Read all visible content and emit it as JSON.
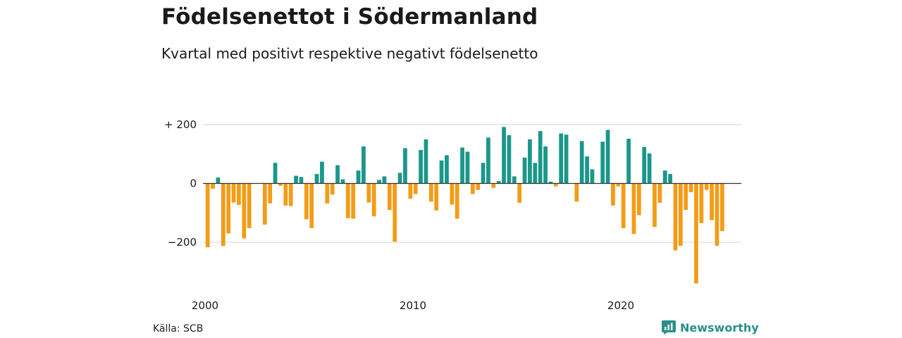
{
  "title": "Födelsenettot i Södermanland",
  "subtitle": "Kvartal med positivt respektive negativt födelsenetto",
  "source": "Källa: SCB",
  "brand": "Newsworthy",
  "colors": {
    "positive": "#1a978a",
    "negative": "#f39c17",
    "grid": "#dddddd",
    "axis": "#333333",
    "brand": "#2a8f88"
  },
  "chart_data": {
    "type": "bar",
    "title": "Födelsenettot i Södermanland",
    "subtitle": "Kvartal med positivt respektive negativt födelsenetto",
    "xlabel": "",
    "ylabel": "",
    "ylim": [
      -360,
      220
    ],
    "y_ticks": [
      200,
      0,
      -200
    ],
    "y_tick_labels": [
      "+ 200",
      "0",
      "−200"
    ],
    "x_ticks": [
      2000,
      2010,
      2020
    ],
    "x_tick_labels": [
      "2000",
      "2010",
      "2020"
    ],
    "grid": true,
    "start": "2000 Q1",
    "values": [
      -217,
      -18,
      20,
      -213,
      -170,
      -65,
      -73,
      -187,
      -152,
      0,
      0,
      -140,
      -68,
      70,
      -8,
      -75,
      -77,
      26,
      22,
      -122,
      -152,
      32,
      74,
      -68,
      -38,
      62,
      14,
      -118,
      -120,
      44,
      126,
      -65,
      -112,
      12,
      24,
      -90,
      -198,
      36,
      120,
      -52,
      -36,
      114,
      150,
      -62,
      -92,
      78,
      96,
      -72,
      -120,
      122,
      108,
      -36,
      -22,
      70,
      156,
      -15,
      8,
      192,
      164,
      24,
      -66,
      88,
      150,
      70,
      178,
      126,
      6,
      -10,
      170,
      166,
      0,
      -62,
      144,
      92,
      48,
      0,
      142,
      182,
      -75,
      -10,
      -152,
      152,
      -172,
      -108,
      124,
      102,
      -148,
      -66,
      44,
      32,
      -228,
      -212,
      -90,
      -30,
      -340,
      -135,
      -22,
      -125,
      -212,
      -162
    ]
  }
}
